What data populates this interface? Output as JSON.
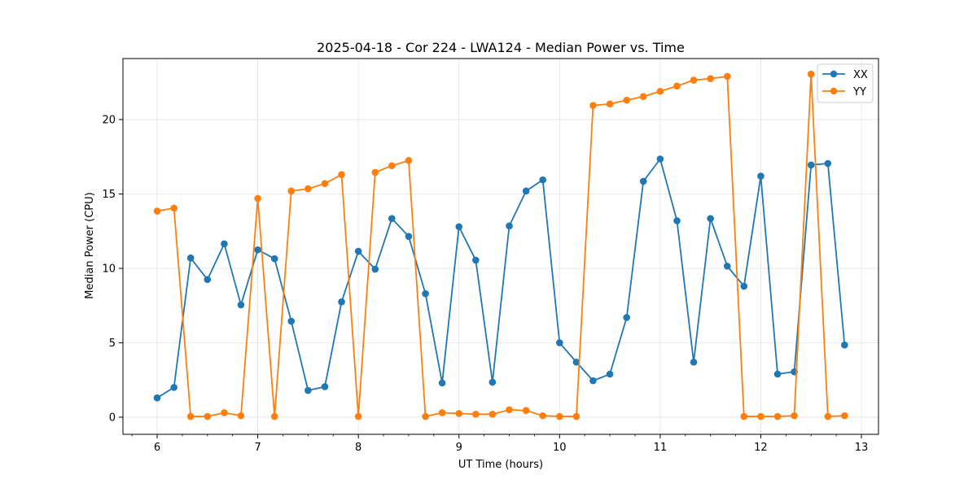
{
  "chart_data": {
    "type": "line",
    "title": "2025-04-18 - Cor 224 - LWA124 - Median Power vs. Time",
    "xlabel": "UT Time (hours)",
    "ylabel": "Median Power (CPU)",
    "xlim": [
      5.66,
      13.17
    ],
    "ylim": [
      -1.15,
      24.1
    ],
    "xticks": [
      6,
      7,
      8,
      9,
      10,
      11,
      12,
      13
    ],
    "xtick_labels": [
      "6",
      "7",
      "8",
      "9",
      "10",
      "11",
      "12",
      "13"
    ],
    "yticks": [
      0,
      5,
      10,
      15,
      20
    ],
    "ytick_labels": [
      "0",
      "5",
      "10",
      "15",
      "20"
    ],
    "grid": true,
    "legend_position": "top-right",
    "x": [
      6.0,
      6.167,
      6.333,
      6.5,
      6.667,
      6.833,
      7.0,
      7.167,
      7.333,
      7.5,
      7.667,
      7.833,
      8.0,
      8.167,
      8.333,
      8.5,
      8.667,
      8.833,
      9.0,
      9.167,
      9.333,
      9.5,
      9.667,
      9.833,
      10.0,
      10.167,
      10.333,
      10.5,
      10.667,
      10.833,
      11.0,
      11.167,
      11.333,
      11.5,
      11.667,
      11.833,
      12.0,
      12.167,
      12.333,
      12.5,
      12.667,
      12.833
    ],
    "series": [
      {
        "name": "XX",
        "color": "#1f77b4",
        "values": [
          1.3,
          2.0,
          10.7,
          9.25,
          11.65,
          7.55,
          11.25,
          10.65,
          6.45,
          1.8,
          2.05,
          7.75,
          11.15,
          9.95,
          13.35,
          12.15,
          8.3,
          2.3,
          12.8,
          10.55,
          2.35,
          12.85,
          15.2,
          15.95,
          5.0,
          3.7,
          2.45,
          2.9,
          6.7,
          15.85,
          17.35,
          13.2,
          3.7,
          13.35,
          10.15,
          8.8,
          16.2,
          2.9,
          3.05,
          16.95,
          17.05,
          4.85
        ]
      },
      {
        "name": "YY",
        "color": "#ff7f0e",
        "values": [
          13.85,
          14.05,
          0.05,
          0.05,
          0.3,
          0.1,
          14.7,
          0.05,
          15.2,
          15.35,
          15.7,
          16.3,
          0.05,
          16.45,
          16.9,
          17.25,
          0.05,
          0.3,
          0.25,
          0.2,
          0.2,
          0.5,
          0.45,
          0.1,
          0.05,
          0.05,
          20.95,
          21.05,
          21.3,
          21.55,
          21.9,
          22.25,
          22.65,
          22.75,
          22.9,
          0.05,
          0.05,
          0.05,
          0.1,
          23.05,
          0.05,
          0.1
        ]
      }
    ]
  }
}
